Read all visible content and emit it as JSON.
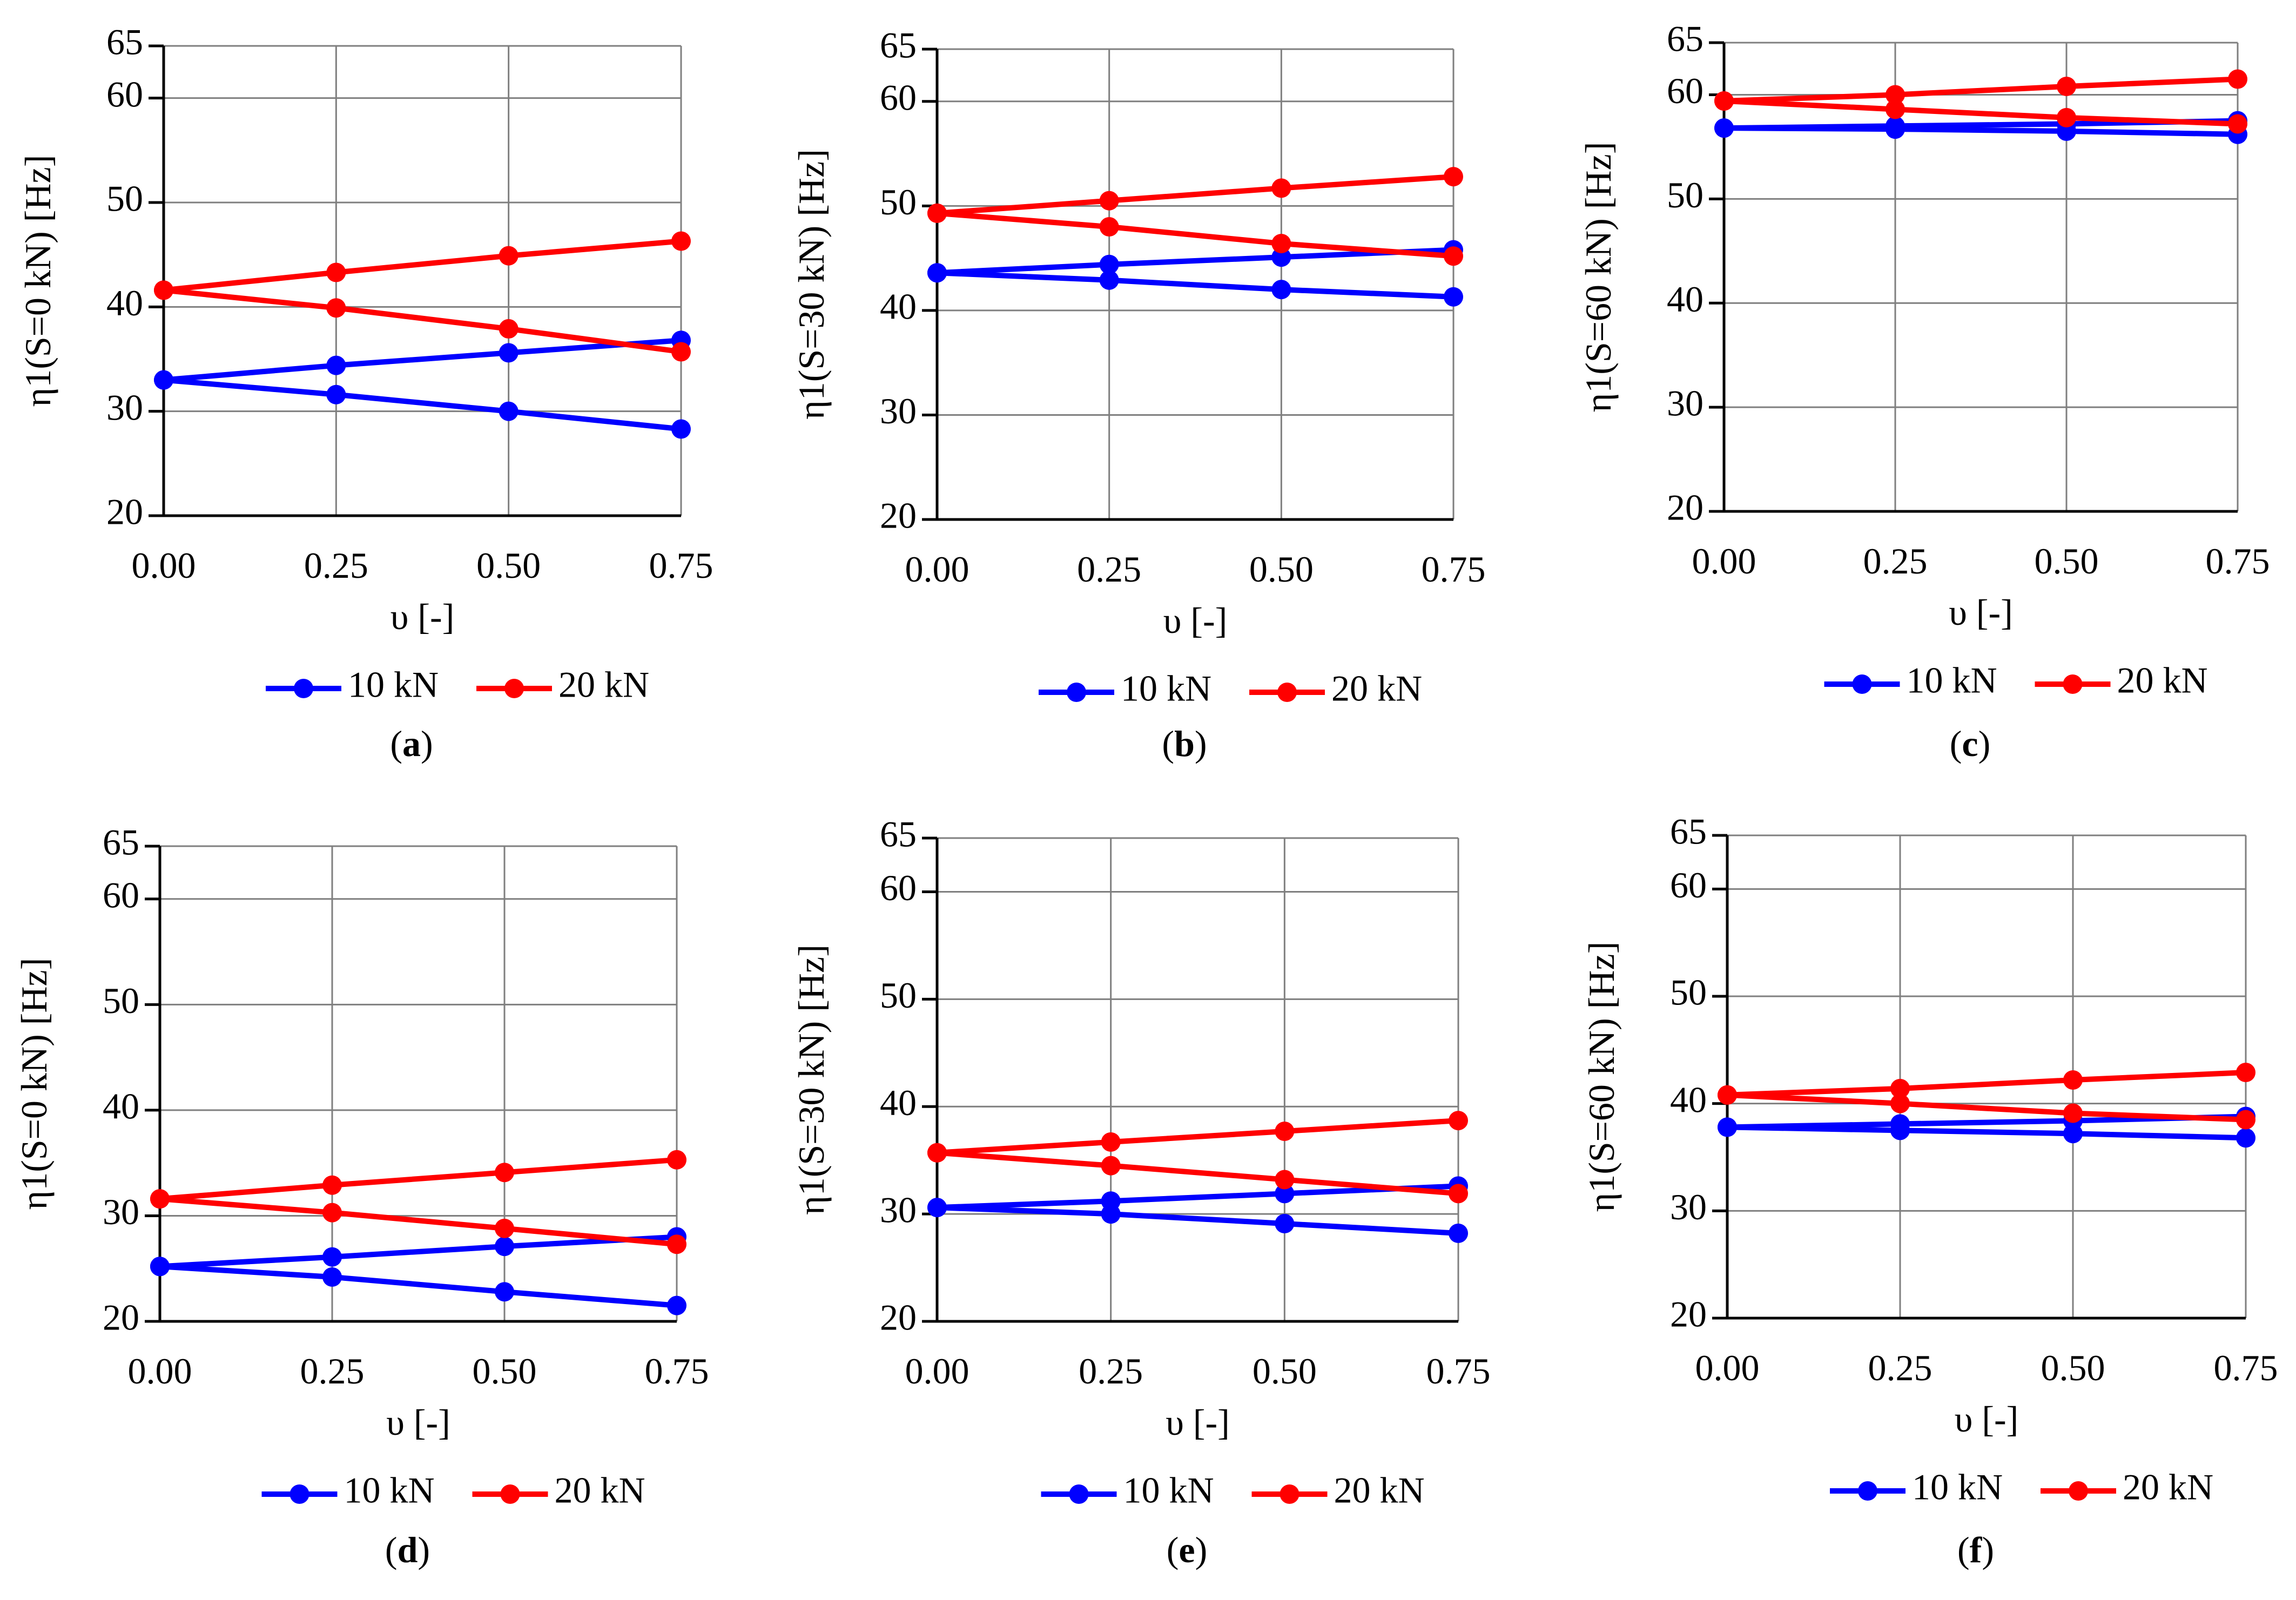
{
  "colors": {
    "series_10kN": "#0000ff",
    "series_20kN": "#ff0000",
    "grid": "#7f7f7f",
    "axis": "#000000"
  },
  "chart_data": [
    {
      "type": "line",
      "panel_label": "a",
      "ylabel": "η1(S=0 kN) [Hz]",
      "xlabel": "υ [-]",
      "x": [
        0.0,
        0.25,
        0.5,
        0.75
      ],
      "x_tick_labels": [
        "0.00",
        "0.25",
        "0.50",
        "0.75"
      ],
      "ylim": [
        20,
        65
      ],
      "y_ticks": [
        20,
        30,
        40,
        50,
        60,
        65
      ],
      "xlim": [
        0,
        0.75
      ],
      "grid": true,
      "legend_position": "bottom",
      "series": [
        {
          "name": "10 kN",
          "values": [
            33.0,
            34.4,
            35.6,
            36.8
          ]
        },
        {
          "name": "10 kN",
          "values": [
            33.0,
            31.6,
            30.0,
            28.3
          ],
          "legend": false
        },
        {
          "name": "20 kN",
          "values": [
            41.6,
            43.3,
            44.9,
            46.3
          ]
        },
        {
          "name": "20 kN",
          "values": [
            41.6,
            39.9,
            37.9,
            35.7
          ],
          "legend": false
        }
      ]
    },
    {
      "type": "line",
      "panel_label": "b",
      "ylabel": "η1(S=30 kN) [Hz]",
      "xlabel": "υ [-]",
      "x": [
        0.0,
        0.25,
        0.5,
        0.75
      ],
      "x_tick_labels": [
        "0.00",
        "0.25",
        "0.50",
        "0.75"
      ],
      "ylim": [
        20,
        65
      ],
      "y_ticks": [
        20,
        30,
        40,
        50,
        60,
        65
      ],
      "xlim": [
        0,
        0.75
      ],
      "grid": true,
      "legend_position": "bottom",
      "series": [
        {
          "name": "10 kN",
          "values": [
            43.6,
            44.4,
            45.1,
            45.8
          ]
        },
        {
          "name": "10 kN",
          "values": [
            43.6,
            42.9,
            42.0,
            41.3
          ],
          "legend": false
        },
        {
          "name": "20 kN",
          "values": [
            49.3,
            50.5,
            51.7,
            52.8
          ]
        },
        {
          "name": "20 kN",
          "values": [
            49.3,
            48.0,
            46.4,
            45.2
          ],
          "legend": false
        }
      ]
    },
    {
      "type": "line",
      "panel_label": "c",
      "ylabel": "η1(S=60 kN)  [Hz]",
      "xlabel": "υ [-]",
      "x": [
        0.0,
        0.25,
        0.5,
        0.75
      ],
      "x_tick_labels": [
        "0.00",
        "0.25",
        "0.50",
        "0.75"
      ],
      "ylim": [
        20,
        65
      ],
      "y_ticks": [
        20,
        30,
        40,
        50,
        60,
        65
      ],
      "xlim": [
        0,
        0.75
      ],
      "grid": true,
      "legend_position": "bottom",
      "series": [
        {
          "name": "10 kN",
          "values": [
            56.8,
            57.0,
            57.2,
            57.5
          ]
        },
        {
          "name": "10 kN",
          "values": [
            56.8,
            56.7,
            56.5,
            56.2
          ],
          "legend": false
        },
        {
          "name": "20 kN",
          "values": [
            59.4,
            60.0,
            60.8,
            61.5
          ]
        },
        {
          "name": "20 kN",
          "values": [
            59.4,
            58.6,
            57.8,
            57.2
          ],
          "legend": false
        }
      ]
    },
    {
      "type": "line",
      "panel_label": "d",
      "ylabel": "η1(S=0 kN) [Hz]",
      "xlabel": "υ [-]",
      "x": [
        0.0,
        0.25,
        0.5,
        0.75
      ],
      "x_tick_labels": [
        "0.00",
        "0.25",
        "0.50",
        "0.75"
      ],
      "ylim": [
        20,
        65
      ],
      "y_ticks": [
        20,
        30,
        40,
        50,
        60,
        65
      ],
      "xlim": [
        0,
        0.75
      ],
      "grid": true,
      "legend_position": "bottom",
      "series": [
        {
          "name": "10 kN",
          "values": [
            25.2,
            26.1,
            27.1,
            28.0
          ]
        },
        {
          "name": "10 kN",
          "values": [
            25.2,
            24.2,
            22.8,
            21.5
          ],
          "legend": false
        },
        {
          "name": "20 kN",
          "values": [
            31.6,
            32.9,
            34.1,
            35.3
          ]
        },
        {
          "name": "20 kN",
          "values": [
            31.6,
            30.3,
            28.8,
            27.3
          ],
          "legend": false
        }
      ]
    },
    {
      "type": "line",
      "panel_label": "e",
      "ylabel": "η1(S=30 kN) [Hz]",
      "xlabel": "υ [-]",
      "x": [
        0.0,
        0.25,
        0.5,
        0.75
      ],
      "x_tick_labels": [
        "0.00",
        "0.25",
        "0.50",
        "0.75"
      ],
      "ylim": [
        20,
        65
      ],
      "y_ticks": [
        20,
        30,
        40,
        50,
        60,
        65
      ],
      "xlim": [
        0,
        0.75
      ],
      "grid": true,
      "legend_position": "bottom",
      "series": [
        {
          "name": "10 kN",
          "values": [
            30.6,
            31.2,
            31.9,
            32.6
          ]
        },
        {
          "name": "10 kN",
          "values": [
            30.6,
            30.0,
            29.1,
            28.2
          ],
          "legend": false
        },
        {
          "name": "20 kN",
          "values": [
            35.7,
            36.7,
            37.7,
            38.7
          ]
        },
        {
          "name": "20 kN",
          "values": [
            35.7,
            34.5,
            33.2,
            31.9
          ],
          "legend": false
        }
      ]
    },
    {
      "type": "line",
      "panel_label": "f",
      "ylabel": "η1(S=60 kN)  [Hz]",
      "xlabel": "υ [-]",
      "x": [
        0.0,
        0.25,
        0.5,
        0.75
      ],
      "x_tick_labels": [
        "0.00",
        "0.25",
        "0.50",
        "0.75"
      ],
      "ylim": [
        20,
        65
      ],
      "y_ticks": [
        20,
        30,
        40,
        50,
        60,
        65
      ],
      "xlim": [
        0,
        0.75
      ],
      "grid": true,
      "legend_position": "bottom",
      "series": [
        {
          "name": "10 kN",
          "values": [
            37.8,
            38.1,
            38.4,
            38.8
          ]
        },
        {
          "name": "10 kN",
          "values": [
            37.8,
            37.5,
            37.2,
            36.8
          ],
          "legend": false
        },
        {
          "name": "20 kN",
          "values": [
            40.8,
            41.4,
            42.2,
            42.9
          ]
        },
        {
          "name": "20 kN",
          "values": [
            40.8,
            40.0,
            39.1,
            38.5
          ],
          "legend": false
        }
      ]
    }
  ]
}
